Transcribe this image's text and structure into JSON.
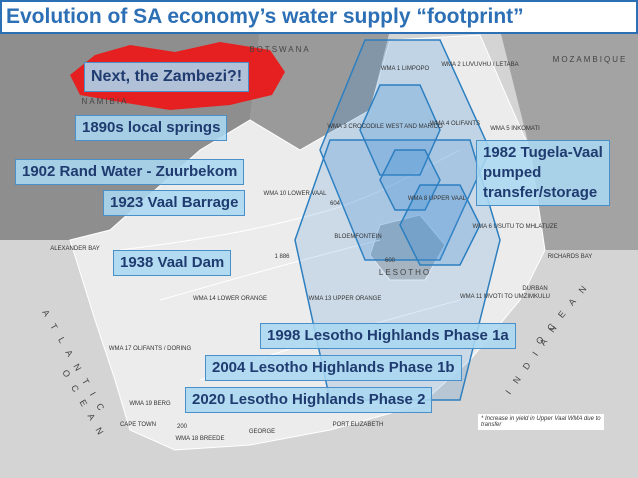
{
  "title": "Evolution of SA economy’s water supply “footprint”",
  "callouts": {
    "zambezi": "Next, the Zambezi?!",
    "springs": "1890s local springs",
    "rand": "1902 Rand Water - Zuurbekom",
    "barrage": "1923 Vaal Barrage",
    "vaaldam": "1938 Vaal Dam",
    "tugela": [
      "1982 Tugela-Vaal",
      "pumped",
      "transfer/storage"
    ],
    "lh1a": "1998 Lesotho Highlands Phase 1a",
    "lh1b": "2004 Lesotho Highlands Phase 1b",
    "lh2": "2020 Lesotho Highlands Phase 2"
  },
  "note": "* Increase in yield in Upper Vaal WMA due to transfer",
  "map_labels": [
    "BOTSWANA",
    "MOZAMBIQUE",
    "NAMIBIA",
    "LESOTHO",
    "A T L A N T I C",
    "O C E A N",
    "I N D I A N",
    "O C E A N",
    "WMA 10 LOWER VAAL",
    "WMA 14 LOWER ORANGE",
    "WMA 13 UPPER ORANGE",
    "WMA 17 OLIFANTS / DORING",
    "WMA 8 UPPER VAAL",
    "WMA 11 MVOTI TO UMZIMKULU",
    "WMA 6 USUTU TO MHLATUZE",
    "WMA 4 OLIFANTS",
    "WMA 5 INKOMATI",
    "WMA 3 CROCODILE WEST AND MARICO",
    "WMA 19 BERG",
    "WMA 18 BREEDE",
    "WMA 1 LIMPOPO",
    "WMA 2 LUVUVHU / LETABA",
    "CAPE TOWN",
    "PORT ELIZABETH",
    "DURBAN",
    "GEORGE",
    "RICHARDS BAY",
    "ALEXANDER BAY",
    "BLOEMFONTEIN",
    "1 886",
    "604",
    "600",
    "200"
  ]
}
